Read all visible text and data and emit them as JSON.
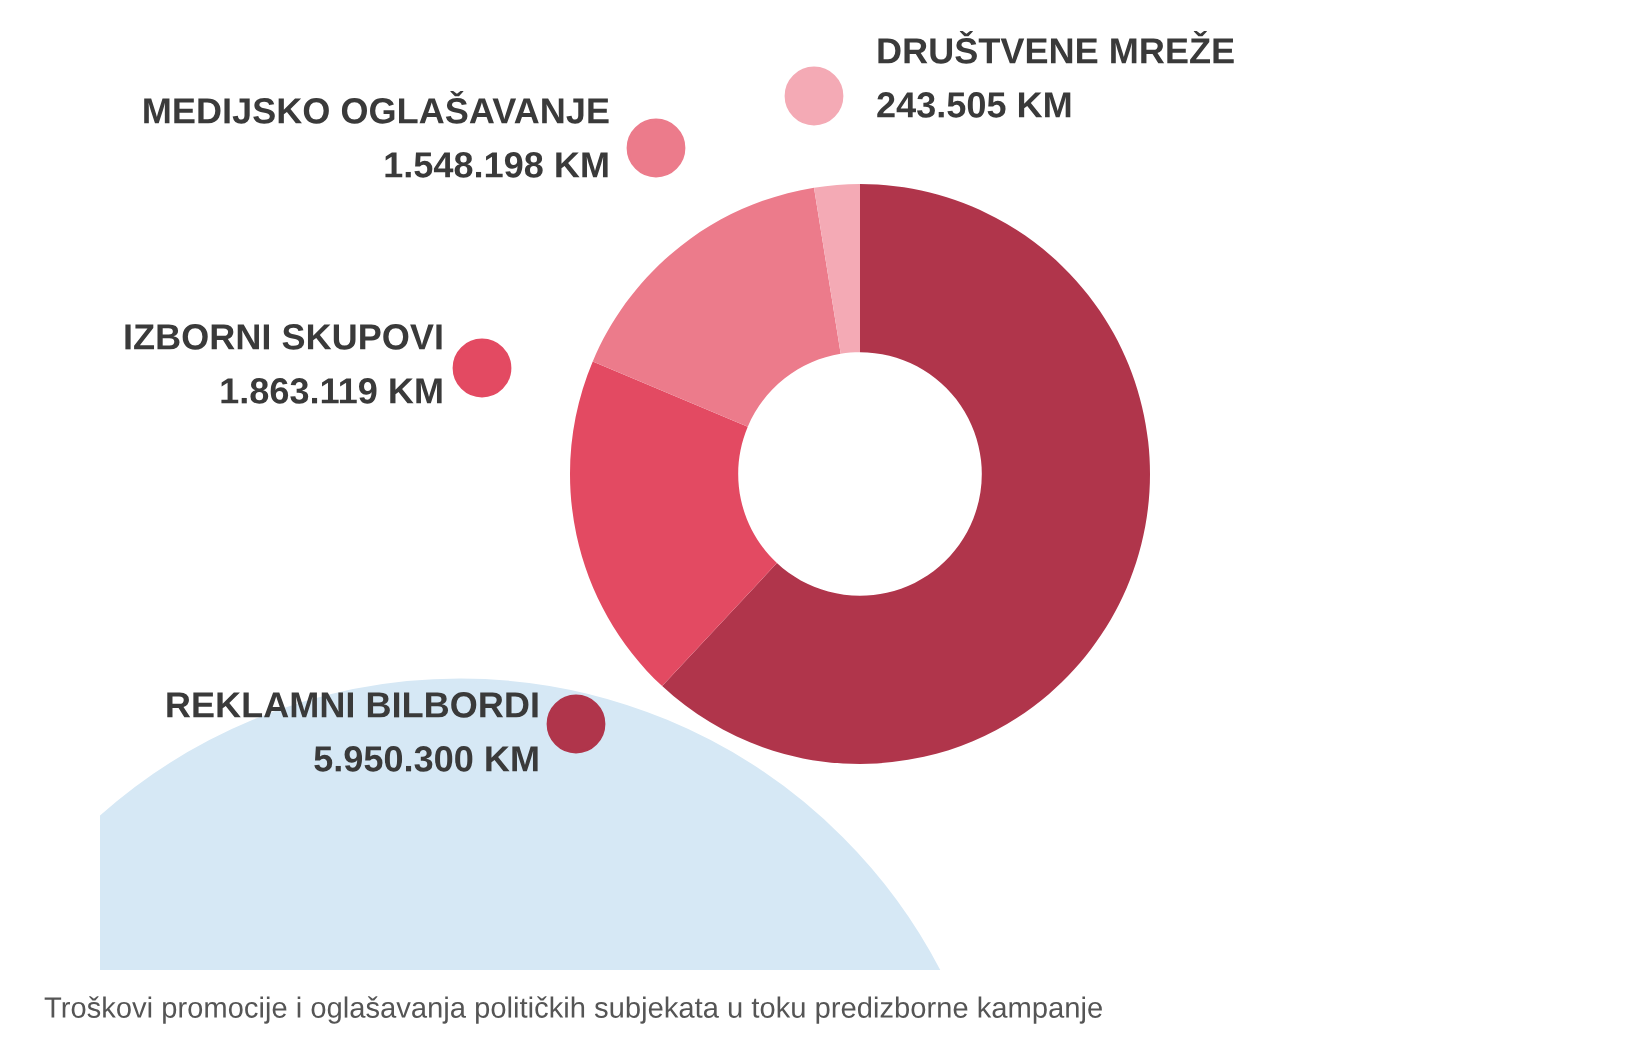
{
  "chart_data": {
    "type": "donut",
    "categories": [
      "REKLAMNI BILBORDI",
      "IZBORNI SKUPOVI",
      "MEDIJSKO OGLAŠAVANJE",
      "DRUŠTVENE MREŽE"
    ],
    "values": [
      5950300,
      1863119,
      1548198,
      243505
    ],
    "value_labels": [
      "5.950.300 KM",
      "1.863.119 KM",
      "1.548.198 KM",
      "243.505 KM"
    ],
    "colors": [
      "#b0354b",
      "#e34a62",
      "#ec7b8b",
      "#f4aab5"
    ],
    "annotations": [
      "Troškovi promocije i oglašavanja političkih subjekata u toku predizborne kampanje"
    ]
  }
}
